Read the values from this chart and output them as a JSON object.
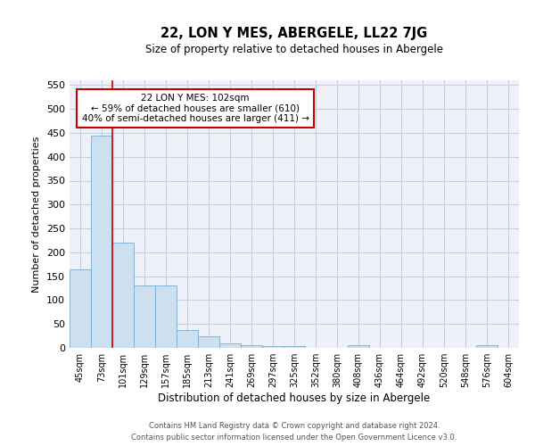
{
  "title": "22, LON Y MES, ABERGELE, LL22 7JG",
  "subtitle": "Size of property relative to detached houses in Abergele",
  "xlabel": "Distribution of detached houses by size in Abergele",
  "ylabel": "Number of detached properties",
  "bar_color": "#cce0f0",
  "bar_edge_color": "#7aacd0",
  "grid_color": "#c0d0e0",
  "background_color": "#eef2f8",
  "annotation_box_color": "#cc0000",
  "annotation_line_color": "#cc0000",
  "annotation_text": "22 LON Y MES: 102sqm\n← 59% of detached houses are smaller (610)\n40% of semi-detached houses are larger (411) →",
  "property_bin_index": 2,
  "categories": [
    "45sqm",
    "73sqm",
    "101sqm",
    "129sqm",
    "157sqm",
    "185sqm",
    "213sqm",
    "241sqm",
    "269sqm",
    "297sqm",
    "325sqm",
    "352sqm",
    "380sqm",
    "408sqm",
    "436sqm",
    "464sqm",
    "492sqm",
    "520sqm",
    "548sqm",
    "576sqm",
    "604sqm"
  ],
  "values": [
    165,
    445,
    220,
    130,
    130,
    37,
    25,
    10,
    6,
    4,
    3,
    0,
    0,
    5,
    0,
    0,
    0,
    0,
    0,
    5,
    0
  ],
  "ylim": [
    0,
    560
  ],
  "yticks": [
    0,
    50,
    100,
    150,
    200,
    250,
    300,
    350,
    400,
    450,
    500,
    550
  ],
  "footer_line1": "Contains HM Land Registry data © Crown copyright and database right 2024.",
  "footer_line2": "Contains public sector information licensed under the Open Government Licence v3.0."
}
